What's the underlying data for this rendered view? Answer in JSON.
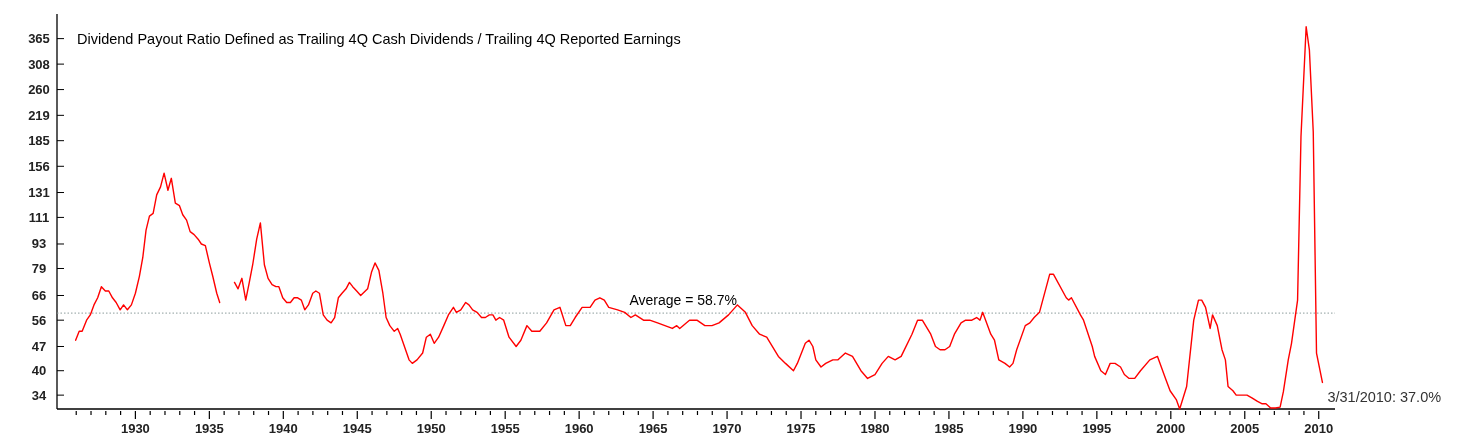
{
  "chart_data": {
    "type": "line",
    "title": "Dividend Payout Ratio Defined as Trailing 4Q Cash Dividends / Trailing 4Q Reported Earnings",
    "log": "y",
    "grid": false,
    "marker": "none",
    "line_style": "solid",
    "xlim": [
      1924.7,
      2011.1
    ],
    "ylim": [
      31,
      430
    ],
    "yticks": [
      34,
      40,
      47,
      56,
      66,
      79,
      93,
      111,
      131,
      156,
      185,
      219,
      260,
      308,
      365
    ],
    "xticks": [
      {
        "value": 1926,
        "label": null
      },
      {
        "value": 1927,
        "label": null
      },
      {
        "value": 1928,
        "label": null
      },
      {
        "value": 1929,
        "label": null
      },
      1930,
      {
        "value": 1931,
        "label": null
      },
      {
        "value": 1932,
        "label": null
      },
      {
        "value": 1933,
        "label": null
      },
      {
        "value": 1934,
        "label": null
      },
      1935,
      {
        "value": 1936,
        "label": null
      },
      {
        "value": 1937,
        "label": null
      },
      {
        "value": 1938,
        "label": null
      },
      {
        "value": 1939,
        "label": null
      },
      1940,
      {
        "value": 1941,
        "label": null
      },
      {
        "value": 1942,
        "label": null
      },
      {
        "value": 1943,
        "label": null
      },
      {
        "value": 1944,
        "label": null
      },
      1945,
      {
        "value": 1946,
        "label": null
      },
      {
        "value": 1947,
        "label": null
      },
      {
        "value": 1948,
        "label": null
      },
      {
        "value": 1949,
        "label": null
      },
      1950,
      {
        "value": 1951,
        "label": null
      },
      {
        "value": 1952,
        "label": null
      },
      {
        "value": 1953,
        "label": null
      },
      {
        "value": 1954,
        "label": null
      },
      1955,
      {
        "value": 1956,
        "label": null
      },
      {
        "value": 1957,
        "label": null
      },
      {
        "value": 1958,
        "label": null
      },
      {
        "value": 1959,
        "label": null
      },
      1960,
      {
        "value": 1961,
        "label": null
      },
      {
        "value": 1962,
        "label": null
      },
      {
        "value": 1963,
        "label": null
      },
      {
        "value": 1964,
        "label": null
      },
      1965,
      {
        "value": 1966,
        "label": null
      },
      {
        "value": 1967,
        "label": null
      },
      {
        "value": 1968,
        "label": null
      },
      {
        "value": 1969,
        "label": null
      },
      1970,
      {
        "value": 1971,
        "label": null
      },
      {
        "value": 1972,
        "label": null
      },
      {
        "value": 1973,
        "label": null
      },
      {
        "value": 1974,
        "label": null
      },
      1975,
      {
        "value": 1976,
        "label": null
      },
      {
        "value": 1977,
        "label": null
      },
      {
        "value": 1978,
        "label": null
      },
      {
        "value": 1979,
        "label": null
      },
      1980,
      {
        "value": 1981,
        "label": null
      },
      {
        "value": 1982,
        "label": null
      },
      {
        "value": 1983,
        "label": null
      },
      {
        "value": 1984,
        "label": null
      },
      1985,
      {
        "value": 1986,
        "label": null
      },
      {
        "value": 1987,
        "label": null
      },
      {
        "value": 1988,
        "label": null
      },
      {
        "value": 1989,
        "label": null
      },
      1990,
      {
        "value": 1991,
        "label": null
      },
      {
        "value": 1992,
        "label": null
      },
      {
        "value": 1993,
        "label": null
      },
      {
        "value": 1994,
        "label": null
      },
      1995,
      {
        "value": 1996,
        "label": null
      },
      {
        "value": 1997,
        "label": null
      },
      {
        "value": 1998,
        "label": null
      },
      {
        "value": 1999,
        "label": null
      },
      2000,
      {
        "value": 2001,
        "label": null
      },
      {
        "value": 2002,
        "label": null
      },
      {
        "value": 2003,
        "label": null
      },
      {
        "value": 2004,
        "label": null
      },
      2005,
      {
        "value": 2006,
        "label": null
      },
      {
        "value": 2007,
        "label": null
      },
      {
        "value": 2008,
        "label": null
      },
      {
        "value": 2009,
        "label": null
      },
      2010
    ],
    "ref_lines": [
      {
        "axis": "y",
        "value": 58.7,
        "label": "Average = 58.7%",
        "color": "#8c9c9c",
        "line_style": "dotted"
      }
    ],
    "annotations": [
      {
        "text": "3/31/2010: 37.0%",
        "x": 2010.25,
        "y": 37.0
      }
    ],
    "series": [
      {
        "color": "#ff0000",
        "x": [
          1925.96,
          1926.2,
          1926.4,
          1926.7,
          1926.95,
          1927.2,
          1927.45,
          1927.7,
          1927.97,
          1928.2,
          1928.45,
          1928.7,
          1928.97,
          1929.2,
          1929.46,
          1929.73,
          1930.0,
          1930.27,
          1930.5,
          1930.72,
          1930.95,
          1931.2,
          1931.44,
          1931.7,
          1931.94,
          1932.2,
          1932.43,
          1932.7,
          1932.98,
          1933.2,
          1933.46,
          1933.7,
          1933.97,
          1934.24,
          1934.46,
          1934.73,
          1935.0,
          1935.23,
          1935.5,
          1935.7,
          1936.2,
          1936.7,
          1936.94,
          1937.2,
          1937.46,
          1937.7,
          1937.93,
          1938.2,
          1938.45,
          1938.72,
          1938.97,
          1939.24,
          1939.5,
          1939.7,
          1939.96,
          1940.23,
          1940.48,
          1940.73,
          1940.97,
          1941.22,
          1941.45,
          1941.7,
          1941.99,
          1942.2,
          1942.44,
          1942.7,
          1942.96,
          1943.23,
          1943.47,
          1943.72,
          1943.97,
          1944.24,
          1944.47,
          1944.69,
          1944.96,
          1945.23,
          1945.7,
          1945.96,
          1946.2,
          1946.46,
          1946.73,
          1946.95,
          1947.2,
          1947.5,
          1947.73,
          1947.9,
          1948.5,
          1948.72,
          1949.04,
          1949.42,
          1949.67,
          1949.94,
          1950.2,
          1950.5,
          1950.85,
          1951.16,
          1951.5,
          1951.7,
          1952.0,
          1952.33,
          1952.55,
          1952.8,
          1953.1,
          1953.4,
          1953.66,
          1953.93,
          1954.17,
          1954.37,
          1954.62,
          1954.9,
          1955.26,
          1955.74,
          1956.06,
          1956.47,
          1956.8,
          1957.34,
          1957.8,
          1958.3,
          1958.7,
          1959.1,
          1959.4,
          1959.73,
          1960.2,
          1960.74,
          1961.07,
          1961.4,
          1961.7,
          1962.0,
          1962.6,
          1963.08,
          1963.5,
          1963.8,
          1964.35,
          1964.77,
          1965.3,
          1965.8,
          1966.3,
          1966.6,
          1966.8,
          1967.46,
          1967.96,
          1968.5,
          1968.98,
          1969.46,
          1970.1,
          1970.7,
          1971.24,
          1971.7,
          1972.2,
          1972.68,
          1973.47,
          1973.95,
          1974.49,
          1974.75,
          1975.29,
          1975.54,
          1975.8,
          1976.0,
          1976.35,
          1976.67,
          1977.15,
          1977.5,
          1978.0,
          1978.48,
          1979.05,
          1979.5,
          1980.0,
          1980.48,
          1980.9,
          1981.36,
          1981.77,
          1982.5,
          1982.88,
          1983.2,
          1983.77,
          1984.09,
          1984.4,
          1984.73,
          1985.05,
          1985.37,
          1985.82,
          1986.13,
          1986.55,
          1986.87,
          1987.1,
          1987.28,
          1987.83,
          1988.08,
          1988.37,
          1988.79,
          1989.1,
          1989.33,
          1989.58,
          1990.16,
          1990.47,
          1990.76,
          1991.12,
          1991.81,
          1992.07,
          1992.93,
          1993.09,
          1993.28,
          1993.89,
          1994.1,
          1994.69,
          1994.85,
          1995.27,
          1995.58,
          1995.9,
          1996.23,
          1996.6,
          1996.86,
          1997.18,
          1997.56,
          1997.95,
          1998.58,
          1999.1,
          1999.64,
          1999.95,
          2000.37,
          2000.6,
          2001.07,
          2001.55,
          2001.87,
          2002.09,
          2002.35,
          2002.66,
          2002.82,
          2003.14,
          2003.46,
          2003.69,
          2003.87,
          2004.2,
          2004.42,
          2004.9,
          2005.15,
          2005.48,
          2005.86,
          2006.18,
          2006.43,
          2006.75,
          2007.08,
          2007.39,
          2007.61,
          2007.94,
          2008.16,
          2008.57,
          2008.8,
          2009.15,
          2009.37,
          2009.63,
          2009.85,
          2010.25
        ],
        "values": [
          49,
          52,
          52,
          56,
          58,
          62,
          65,
          70,
          68,
          68,
          65,
          63,
          60,
          62,
          60,
          62,
          67,
          75,
          85,
          102,
          112,
          114,
          129,
          136,
          149,
          133,
          144,
          122,
          120,
          113,
          109,
          101,
          99,
          96,
          93,
          92,
          82,
          75,
          67,
          63,
          null,
          72,
          69,
          74,
          64,
          72,
          81,
          96,
          107,
          81,
          74,
          71,
          70,
          70,
          65,
          63,
          63,
          65,
          65,
          64,
          60,
          62,
          67,
          68,
          67,
          58,
          56,
          55,
          57,
          65,
          67,
          69,
          72,
          70,
          68,
          66,
          69,
          77,
          82,
          78,
          67,
          57,
          54,
          52,
          53,
          51,
          43,
          42,
          43,
          45,
          50,
          51,
          48,
          50,
          54,
          58,
          61,
          59,
          60,
          63,
          62,
          60,
          59,
          57,
          57,
          58,
          58,
          56,
          57,
          56,
          50,
          47,
          49,
          54,
          52,
          52,
          55,
          60,
          61,
          54,
          54,
          57,
          61,
          61,
          64,
          65,
          64,
          61,
          60,
          59,
          57,
          58,
          56,
          56,
          55,
          54,
          53,
          54,
          53,
          56,
          56,
          54,
          54,
          55,
          58,
          62,
          59,
          54,
          51,
          50,
          44,
          42,
          40,
          42,
          48,
          49,
          47,
          43,
          41,
          42,
          43,
          43,
          45,
          44,
          40,
          38,
          39,
          42,
          44,
          43,
          44,
          51,
          56,
          56,
          51,
          47,
          46,
          46,
          47,
          51,
          55,
          56,
          56,
          57,
          56,
          59,
          51,
          49,
          43,
          42,
          41,
          42,
          46,
          54,
          55,
          57,
          59,
          76,
          76,
          65,
          64,
          65,
          58,
          56,
          47,
          44,
          40,
          39,
          42,
          42,
          41,
          39,
          38,
          38,
          40,
          43,
          44,
          38,
          35,
          33,
          31,
          36,
          56,
          64,
          64,
          61,
          53,
          58,
          54,
          46,
          43,
          36,
          35,
          34,
          34,
          34,
          33.4,
          32.6,
          32.1,
          32.1,
          31.2,
          31.2,
          31.4,
          34.8,
          43,
          48,
          64,
          190,
          395,
          338,
          196,
          45,
          37.0
        ]
      }
    ]
  }
}
